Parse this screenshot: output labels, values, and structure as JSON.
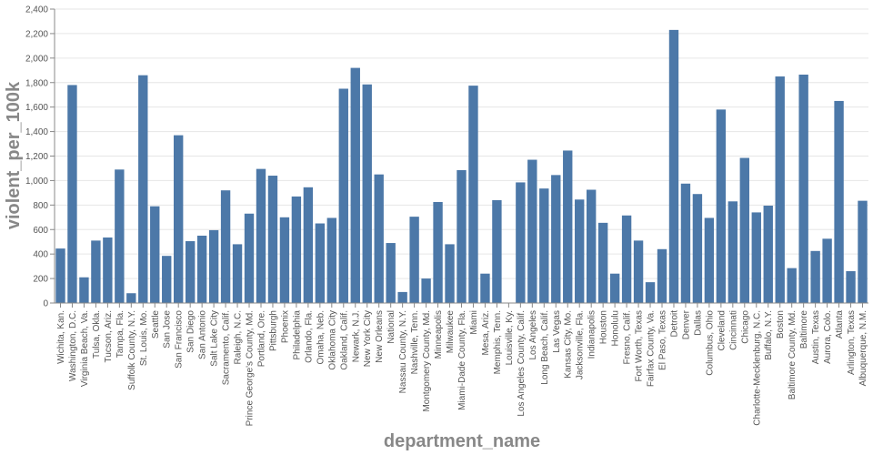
{
  "chart_data": {
    "type": "bar",
    "xlabel": "department_name",
    "ylabel": "violent_per_100k",
    "ylim": [
      0,
      2400
    ],
    "yticks": [
      "0",
      "200",
      "400",
      "600",
      "800",
      "1,000",
      "1,200",
      "1,400",
      "1,600",
      "1,800",
      "2,000",
      "2,200",
      "2,400"
    ],
    "grid": true,
    "bar_color": "#4c78a8",
    "categories": [
      "Wichita, Kan.",
      "Washington, D.C.",
      "Virginia Beach, Va.",
      "Tulsa, Okla.",
      "Tucson, Ariz.",
      "Tampa, Fla.",
      "Suffolk County, N.Y.",
      "St. Louis, Mo.",
      "Seattle",
      "San Jose",
      "San Francisco",
      "San Diego",
      "San Antonio",
      "Salt Lake City",
      "Sacramento, Calif.",
      "Raleigh, N.C.",
      "Prince George's County, Md.",
      "Portland, Ore.",
      "Pittsburgh",
      "Phoenix",
      "Philadelphia",
      "Orlando, Fla.",
      "Omaha, Neb.",
      "Oklahoma City",
      "Oakland, Calif.",
      "Newark, N.J.",
      "New York City",
      "New Orleans",
      "National",
      "Nassau County, N.Y.",
      "Nashville, Tenn.",
      "Montgomery County, Md.",
      "Minneapolis",
      "Milwaukee",
      "Miami-Dade County, Fla.",
      "Miami",
      "Mesa, Ariz.",
      "Memphis, Tenn.",
      "Louisville, Ky.",
      "Los Angeles County, Calif.",
      "Los Angeles",
      "Long Beach, Calif.",
      "Las Vegas",
      "Kansas City, Mo.",
      "Jacksonville, Fla.",
      "Indianapolis",
      "Houston",
      "Honolulu",
      "Fresno, Calif.",
      "Fort Worth, Texas",
      "Fairfax County, Va.",
      "El Paso, Texas",
      "Detroit",
      "Denver",
      "Dallas",
      "Columbus, Ohio",
      "Cleveland",
      "Cincinnati",
      "Chicago",
      "Charlotte-Mecklenburg, N.C.",
      "Buffalo, N.Y.",
      "Boston",
      "Baltimore County, Md.",
      "Baltimore",
      "Austin, Texas",
      "Aurora, Colo.",
      "Atlanta",
      "Arlington, Texas",
      "Albuquerque, N.M."
    ],
    "values": [
      445,
      1780,
      210,
      510,
      535,
      1090,
      80,
      1860,
      790,
      385,
      1370,
      505,
      550,
      595,
      920,
      480,
      730,
      1095,
      1040,
      700,
      870,
      945,
      650,
      695,
      1750,
      1920,
      1785,
      1050,
      490,
      90,
      705,
      200,
      825,
      480,
      1085,
      1775,
      240,
      840,
      0,
      985,
      1170,
      935,
      1045,
      1245,
      845,
      925,
      655,
      240,
      715,
      510,
      170,
      440,
      2230,
      975,
      890,
      695,
      1580,
      830,
      1185,
      740,
      795,
      1850,
      285,
      1865,
      425,
      525,
      1650,
      260,
      835
    ]
  }
}
